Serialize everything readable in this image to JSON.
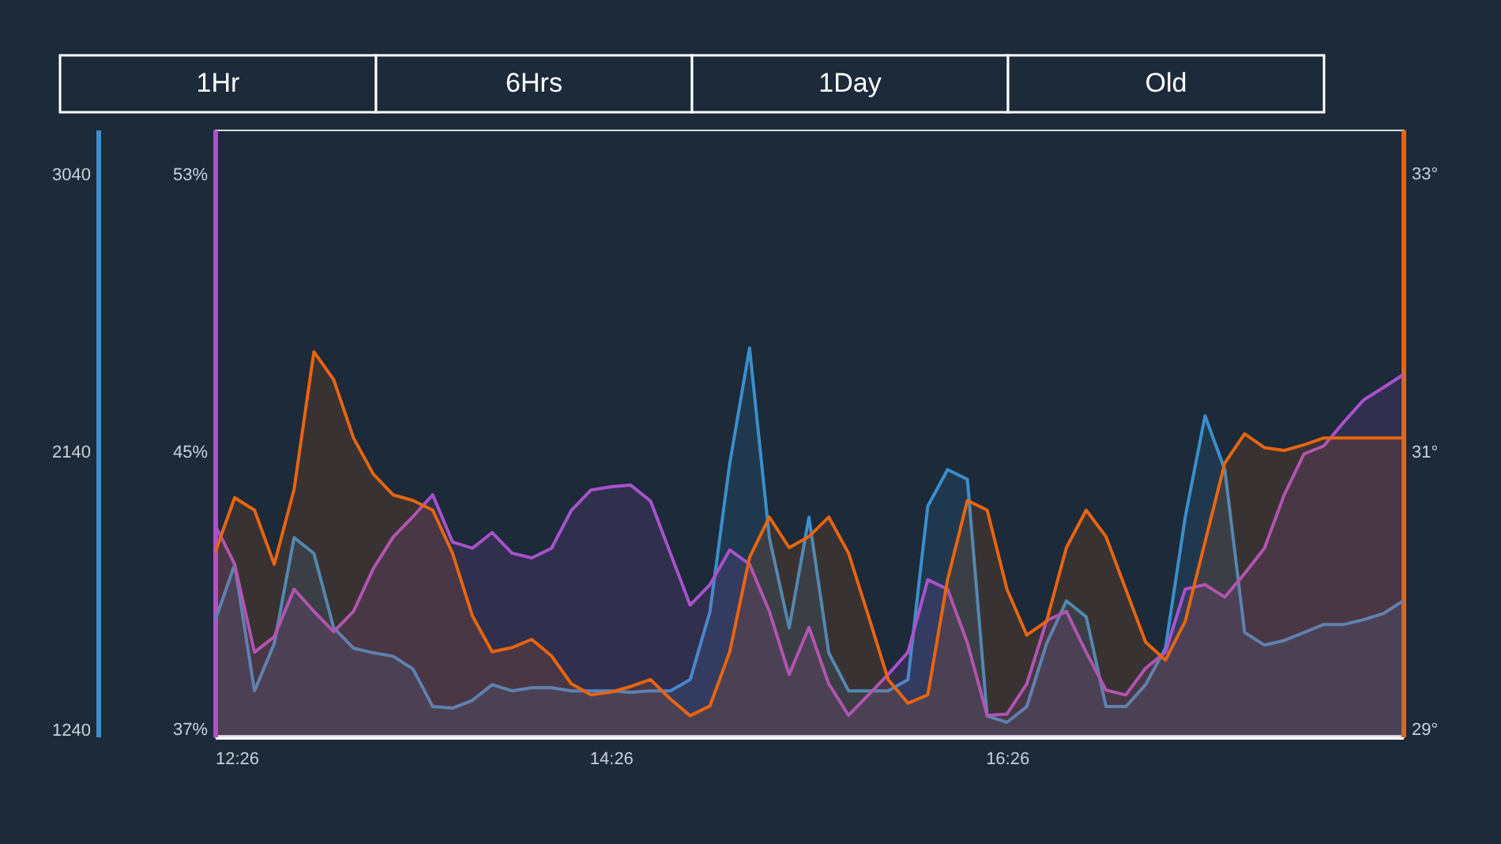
{
  "chart_data": {
    "type": "area",
    "annotations": [
      "1Hr",
      "6Hrs",
      "1Day",
      "Old"
    ],
    "x": [
      12.43,
      12.53,
      12.63,
      12.73,
      12.83,
      12.93,
      13.03,
      13.13,
      13.23,
      13.33,
      13.43,
      13.53,
      13.63,
      13.73,
      13.83,
      13.93,
      14.03,
      14.13,
      14.23,
      14.33,
      14.43,
      14.53,
      14.63,
      14.73,
      14.83,
      14.93,
      15.03,
      15.13,
      15.23,
      15.33,
      15.43,
      15.53,
      15.63,
      15.73,
      15.83,
      15.93,
      16.03,
      16.13,
      16.23,
      16.33,
      16.43,
      16.53,
      16.63,
      16.73,
      16.83,
      16.93,
      17.03,
      17.13,
      17.23,
      17.33,
      17.43,
      17.53,
      17.63,
      17.73,
      17.83,
      17.93,
      18.03,
      18.13,
      18.23,
      18.33,
      18.43
    ],
    "xlim": [
      12.43,
      18.43
    ],
    "xticks": [
      {
        "value": 12.43,
        "label": "12:26"
      },
      {
        "value": 14.43,
        "label": "14:26"
      },
      {
        "value": 16.43,
        "label": "16:26"
      }
    ],
    "ylim": [
      1220,
      3185
    ],
    "yticks": [
      1240,
      2140,
      3040
    ],
    "y2lim": [
      36.8,
      54.3
    ],
    "y2ticks": [
      {
        "value": 37,
        "label": "37%"
      },
      {
        "value": 45,
        "label": "45%"
      },
      {
        "value": 53,
        "label": "53%"
      }
    ],
    "y3lim": [
      28.95,
      33.32
    ],
    "y3ticks": [
      {
        "value": 29,
        "label": "29°"
      },
      {
        "value": 31,
        "label": "31°"
      },
      {
        "value": 33,
        "label": "33°"
      }
    ],
    "series": [
      {
        "color": "#3b8fcb",
        "axis": "y",
        "values": [
          1593,
          1777,
          1368,
          1521,
          1864,
          1813,
          1572,
          1506,
          1491,
          1480,
          1439,
          1317,
          1312,
          1337,
          1388,
          1368,
          1378,
          1378,
          1368,
          1368,
          1368,
          1363,
          1368,
          1368,
          1404,
          1624,
          2104,
          2478,
          1864,
          1572,
          1930,
          1491,
          1368,
          1368,
          1368,
          1404,
          1966,
          2084,
          2053,
          1286,
          1266,
          1317,
          1521,
          1659,
          1608,
          1317,
          1317,
          1388,
          1506,
          1930,
          2258,
          2084,
          1557,
          1516,
          1531,
          1557,
          1583,
          1583,
          1598,
          1618,
          1659
        ]
      },
      {
        "color": "#a952cc",
        "axis": "y2",
        "values": [
          42.91,
          41.77,
          39.23,
          39.68,
          41.05,
          40.41,
          39.82,
          40.41,
          41.64,
          42.55,
          43.14,
          43.77,
          42.41,
          42.23,
          42.68,
          42.09,
          41.95,
          42.23,
          43.32,
          43.91,
          44.0,
          44.05,
          43.59,
          42.09,
          40.59,
          41.18,
          42.18,
          41.77,
          40.41,
          38.59,
          39.95,
          38.32,
          37.41,
          38.0,
          38.59,
          39.23,
          41.32,
          41.05,
          39.5,
          37.41,
          37.45,
          38.32,
          40.14,
          40.41,
          39.23,
          38.14,
          38.0,
          38.77,
          39.23,
          41.05,
          41.18,
          40.82,
          41.5,
          42.23,
          43.77,
          44.95,
          45.18,
          45.86,
          46.5,
          46.86,
          47.23
        ]
      },
      {
        "color": "#e8650f",
        "axis": "y3",
        "values": [
          30.27,
          30.67,
          30.58,
          30.19,
          30.73,
          31.72,
          31.52,
          31.1,
          30.84,
          30.69,
          30.65,
          30.58,
          30.27,
          29.82,
          29.56,
          29.59,
          29.65,
          29.53,
          29.33,
          29.25,
          29.27,
          29.31,
          29.36,
          29.22,
          29.1,
          29.17,
          29.56,
          30.24,
          30.53,
          30.31,
          30.39,
          30.53,
          30.27,
          29.82,
          29.36,
          29.19,
          29.25,
          30.08,
          30.65,
          30.58,
          30.01,
          29.68,
          29.78,
          30.31,
          30.58,
          30.39,
          30.01,
          29.63,
          29.5,
          29.78,
          30.35,
          30.92,
          31.13,
          31.03,
          31.01,
          31.05,
          31.1,
          31.1,
          31.1,
          31.1,
          31.1
        ]
      }
    ]
  }
}
